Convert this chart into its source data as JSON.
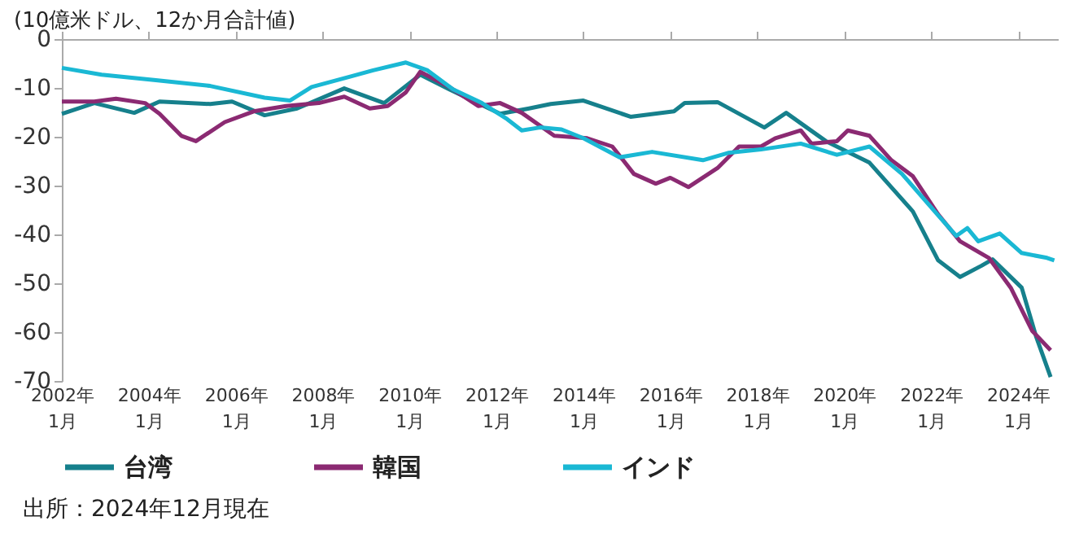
{
  "chart_data": {
    "type": "line",
    "ylabel": "(10億米ドル、12か月合計値)",
    "annotations": [
      "出所：2024年12月現在"
    ],
    "xlim": [
      "2002-01",
      "2024-12"
    ],
    "xticks": [
      {
        "value": "2002-01",
        "label": "2002年\n1月"
      },
      {
        "value": "2004-01",
        "label": "2004年\n1月"
      },
      {
        "value": "2006-01",
        "label": "2006年\n1月"
      },
      {
        "value": "2008-01",
        "label": "2008年\n1月"
      },
      {
        "value": "2010-01",
        "label": "2010年\n1月"
      },
      {
        "value": "2012-01",
        "label": "2012年\n1月"
      },
      {
        "value": "2014-01",
        "label": "2014年\n1月"
      },
      {
        "value": "2016-01",
        "label": "2016年\n1月"
      },
      {
        "value": "2018-01",
        "label": "2018年\n1月"
      },
      {
        "value": "2020-01",
        "label": "2020年\n1月"
      },
      {
        "value": "2022-01",
        "label": "2022年\n1月"
      },
      {
        "value": "2024-01",
        "label": "2024年\n1月"
      }
    ],
    "ylim": [
      -70,
      0
    ],
    "yticks": [
      -70,
      -60,
      -50,
      -40,
      -30,
      -20,
      -10,
      0
    ],
    "grid": false,
    "legend": "bottom",
    "marker": "none",
    "line_style": "solid",
    "series": [
      {
        "name": "台湾",
        "color": "#16808c",
        "x": [
          "2002-01",
          "2002-10",
          "2003-09",
          "2004-04",
          "2005-06",
          "2005-12",
          "2006-09",
          "2007-06",
          "2008-07",
          "2009-06",
          "2010-04",
          "2010-12",
          "2012-02",
          "2012-10",
          "2013-04",
          "2014-01",
          "2015-02",
          "2016-02",
          "2016-05",
          "2017-02",
          "2018-03",
          "2018-09",
          "2019-08",
          "2020-08",
          "2021-08",
          "2022-03",
          "2022-09",
          "2023-03",
          "2023-06",
          "2024-02",
          "2024-06",
          "2024-10"
        ],
        "values": [
          -15.3,
          -13.1,
          -15.1,
          -12.8,
          -13.3,
          -12.8,
          -15.6,
          -14.2,
          -10.1,
          -13.1,
          -7.3,
          -10.3,
          -15.3,
          -14.2,
          -13.3,
          -12.6,
          -15.9,
          -14.8,
          -13.1,
          -12.9,
          -18.1,
          -15.1,
          -20.9,
          -25.3,
          -35.3,
          -45.3,
          -48.7,
          -46.4,
          -45.1,
          -50.9,
          -60.9,
          -69.2
        ]
      },
      {
        "name": "韓国",
        "color": "#8b2a72",
        "x": [
          "2002-01",
          "2002-10",
          "2003-04",
          "2003-12",
          "2004-04",
          "2004-10",
          "2005-02",
          "2005-10",
          "2006-06",
          "2007-03",
          "2007-12",
          "2008-07",
          "2009-02",
          "2009-07",
          "2009-12",
          "2010-04",
          "2010-12",
          "2011-08",
          "2012-02",
          "2012-08",
          "2013-05",
          "2014-02",
          "2014-09",
          "2015-03",
          "2015-09",
          "2016-01",
          "2016-06",
          "2017-02",
          "2017-08",
          "2018-02",
          "2018-06",
          "2019-01",
          "2019-04",
          "2019-11",
          "2020-02",
          "2020-08",
          "2021-02",
          "2021-08",
          "2022-03",
          "2022-09",
          "2023-05",
          "2023-11",
          "2024-05",
          "2024-10"
        ],
        "values": [
          -12.8,
          -12.8,
          -12.2,
          -13.1,
          -15.3,
          -19.8,
          -20.9,
          -17,
          -14.8,
          -13.7,
          -13.1,
          -11.8,
          -14.2,
          -13.7,
          -10.9,
          -6.7,
          -9.8,
          -13.7,
          -13.1,
          -15.1,
          -19.8,
          -20.3,
          -22,
          -27.6,
          -29.6,
          -28.4,
          -30.3,
          -26.4,
          -22,
          -22,
          -20.3,
          -18.7,
          -21.4,
          -20.9,
          -18.7,
          -19.8,
          -24.8,
          -28.1,
          -35.9,
          -41.4,
          -44.8,
          -50.9,
          -59.8,
          -63.7
        ]
      },
      {
        "name": "インド",
        "color": "#1ab8d4",
        "x": [
          "2002-01",
          "2002-12",
          "2004-03",
          "2005-06",
          "2006-09",
          "2007-04",
          "2007-10",
          "2008-09",
          "2009-03",
          "2009-12",
          "2010-06",
          "2011-01",
          "2011-09",
          "2012-04",
          "2012-08",
          "2013-01",
          "2013-07",
          "2014-01",
          "2014-11",
          "2015-08",
          "2016-10",
          "2017-05",
          "2018-02",
          "2019-01",
          "2019-11",
          "2020-08",
          "2021-05",
          "2022-02",
          "2022-08",
          "2022-11",
          "2023-02",
          "2023-08",
          "2024-02",
          "2024-09",
          "2024-11"
        ],
        "values": [
          -5.9,
          -7.3,
          -8.4,
          -9.6,
          -12,
          -12.6,
          -9.8,
          -7.6,
          -6.4,
          -4.8,
          -6.4,
          -10.3,
          -13.1,
          -16.4,
          -18.7,
          -18.1,
          -18.5,
          -20.3,
          -24.2,
          -23.1,
          -24.8,
          -23.3,
          -22.6,
          -21.4,
          -23.7,
          -22,
          -27.6,
          -35.3,
          -40.3,
          -38.7,
          -41.4,
          -39.8,
          -43.8,
          -44.8,
          -45.3
        ]
      }
    ]
  }
}
